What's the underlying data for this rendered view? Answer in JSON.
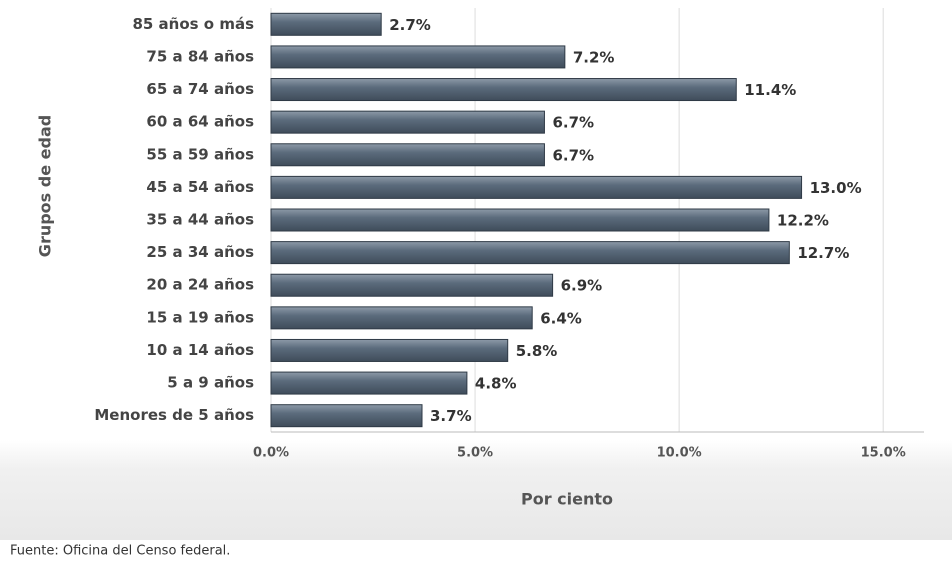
{
  "chart_data": {
    "type": "bar",
    "orientation": "horizontal",
    "categories": [
      "85 años o más",
      "75 a 84 años",
      "65 a 74 años",
      "60 a 64 años",
      "55 a 59 años",
      "45 a 54 años",
      "35 a 44 años",
      "25 a 34 años",
      "20 a 24 años",
      "15 a 19 años",
      "10 a 14 años",
      "5 a 9 años",
      "Menores de 5 años"
    ],
    "values": [
      2.7,
      7.2,
      11.4,
      6.7,
      6.7,
      13.0,
      12.2,
      12.7,
      6.9,
      6.4,
      5.8,
      4.8,
      3.7
    ],
    "value_labels": [
      "2.7%",
      "7.2%",
      "11.4%",
      "6.7%",
      "6.7%",
      "13.0%",
      "12.2%",
      "12.7%",
      "6.9%",
      "6.4%",
      "5.8%",
      "4.8%",
      "3.7%"
    ],
    "color": "#5b6b7c",
    "xlim": [
      0,
      16
    ],
    "xticks": [
      {
        "value": 0,
        "label": "0.0%"
      },
      {
        "value": 5,
        "label": "5.0%"
      },
      {
        "value": 10,
        "label": "10.0%"
      },
      {
        "value": 15,
        "label": "15.0%"
      }
    ],
    "grid": true,
    "xlabel": "Por ciento",
    "ylabel": "Grupos de edad",
    "source": "Fuente: Oficina del Censo federal."
  }
}
